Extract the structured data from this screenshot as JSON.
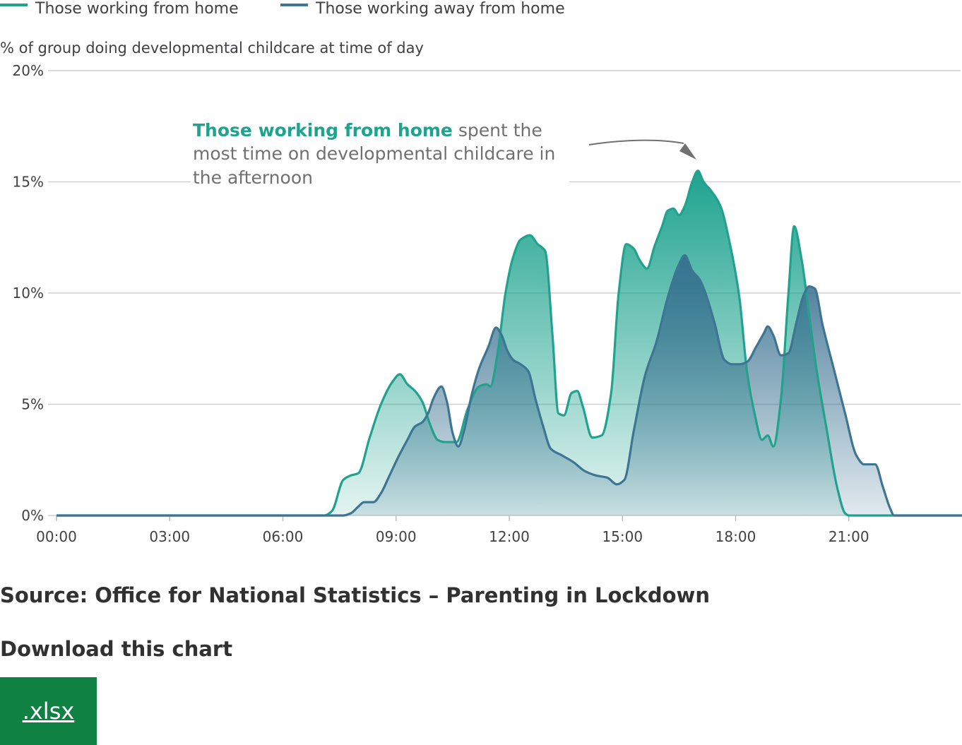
{
  "chart_data": {
    "type": "area",
    "ylabel": "% of group doing developmental childcare at time of day",
    "ylim": [
      0,
      20
    ],
    "xlim": [
      0,
      24
    ],
    "y_ticks": [
      0,
      5,
      10,
      15,
      20
    ],
    "y_tick_labels": [
      "0%",
      "5%",
      "10%",
      "15%",
      "20%"
    ],
    "x_ticks": [
      0,
      3,
      6,
      9,
      12,
      15,
      18,
      21
    ],
    "x_tick_labels": [
      "00:00",
      "03:00",
      "06:00",
      "09:00",
      "12:00",
      "15:00",
      "18:00",
      "21:00"
    ],
    "grid": "horizontal",
    "legend_position": "top-left",
    "series": [
      {
        "name": "Those working from home",
        "color": "#22a28e",
        "points": [
          [
            0,
            0
          ],
          [
            7.1,
            0
          ],
          [
            7.3,
            0.2
          ],
          [
            7.6,
            1.6
          ],
          [
            7.8,
            1.8
          ],
          [
            8.0,
            1.9
          ],
          [
            8.3,
            3.5
          ],
          [
            8.6,
            5.0
          ],
          [
            8.9,
            6.0
          ],
          [
            9.1,
            6.35
          ],
          [
            9.3,
            5.9
          ],
          [
            9.5,
            5.6
          ],
          [
            9.7,
            5.1
          ],
          [
            9.9,
            4.1
          ],
          [
            10.1,
            3.4
          ],
          [
            10.3,
            3.3
          ],
          [
            10.6,
            3.3
          ],
          [
            10.9,
            4.8
          ],
          [
            11.2,
            5.8
          ],
          [
            11.4,
            5.9
          ],
          [
            11.5,
            5.8
          ],
          [
            11.7,
            7.4
          ],
          [
            11.9,
            10.0
          ],
          [
            12.1,
            11.6
          ],
          [
            12.3,
            12.4
          ],
          [
            12.55,
            12.6
          ],
          [
            12.75,
            12.2
          ],
          [
            12.95,
            11.9
          ],
          [
            13.15,
            8.0
          ],
          [
            13.3,
            4.6
          ],
          [
            13.45,
            4.5
          ],
          [
            13.65,
            5.5
          ],
          [
            13.8,
            5.6
          ],
          [
            13.95,
            4.9
          ],
          [
            14.2,
            3.5
          ],
          [
            14.45,
            3.6
          ],
          [
            14.7,
            5.5
          ],
          [
            14.9,
            10.0
          ],
          [
            15.1,
            12.2
          ],
          [
            15.3,
            12.0
          ],
          [
            15.45,
            11.5
          ],
          [
            15.65,
            11.1
          ],
          [
            15.85,
            12.1
          ],
          [
            16.05,
            13.0
          ],
          [
            16.2,
            13.7
          ],
          [
            16.35,
            13.8
          ],
          [
            16.5,
            13.5
          ],
          [
            16.65,
            13.9
          ],
          [
            16.85,
            15.0
          ],
          [
            17.0,
            15.5
          ],
          [
            17.15,
            15.0
          ],
          [
            17.35,
            14.6
          ],
          [
            17.6,
            13.9
          ],
          [
            17.85,
            12.2
          ],
          [
            18.1,
            9.8
          ],
          [
            18.3,
            6.5
          ],
          [
            18.5,
            4.6
          ],
          [
            18.7,
            3.4
          ],
          [
            18.85,
            3.6
          ],
          [
            19.0,
            3.1
          ],
          [
            19.2,
            5.2
          ],
          [
            19.4,
            10.0
          ],
          [
            19.55,
            13.0
          ],
          [
            19.75,
            11.5
          ],
          [
            19.95,
            9.0
          ],
          [
            20.15,
            6.5
          ],
          [
            20.4,
            4.0
          ],
          [
            20.7,
            1.2
          ],
          [
            20.9,
            0.1
          ],
          [
            21.0,
            0
          ],
          [
            24,
            0
          ]
        ]
      },
      {
        "name": "Those working away from home",
        "color": "#3d7592",
        "points": [
          [
            0,
            0
          ],
          [
            7.6,
            0
          ],
          [
            7.8,
            0.1
          ],
          [
            8.0,
            0.4
          ],
          [
            8.15,
            0.6
          ],
          [
            8.4,
            0.6
          ],
          [
            8.6,
            1.0
          ],
          [
            8.8,
            1.7
          ],
          [
            9.05,
            2.6
          ],
          [
            9.3,
            3.4
          ],
          [
            9.5,
            4.0
          ],
          [
            9.7,
            4.2
          ],
          [
            9.85,
            4.6
          ],
          [
            10.0,
            5.3
          ],
          [
            10.2,
            5.8
          ],
          [
            10.35,
            5.1
          ],
          [
            10.5,
            3.7
          ],
          [
            10.65,
            3.1
          ],
          [
            10.8,
            3.8
          ],
          [
            11.0,
            5.4
          ],
          [
            11.2,
            6.6
          ],
          [
            11.45,
            7.6
          ],
          [
            11.65,
            8.45
          ],
          [
            11.8,
            8.1
          ],
          [
            11.95,
            7.4
          ],
          [
            12.1,
            7.0
          ],
          [
            12.3,
            6.8
          ],
          [
            12.5,
            6.5
          ],
          [
            12.7,
            5.2
          ],
          [
            12.9,
            4.0
          ],
          [
            13.1,
            3.0
          ],
          [
            13.4,
            2.7
          ],
          [
            13.7,
            2.4
          ],
          [
            14.0,
            2.0
          ],
          [
            14.3,
            1.8
          ],
          [
            14.6,
            1.7
          ],
          [
            14.85,
            1.4
          ],
          [
            15.05,
            1.6
          ],
          [
            15.3,
            3.8
          ],
          [
            15.6,
            6.3
          ],
          [
            15.9,
            7.8
          ],
          [
            16.2,
            9.8
          ],
          [
            16.5,
            11.3
          ],
          [
            16.65,
            11.7
          ],
          [
            16.85,
            11.0
          ],
          [
            17.05,
            10.6
          ],
          [
            17.2,
            10.0
          ],
          [
            17.45,
            8.6
          ],
          [
            17.7,
            7.0
          ],
          [
            17.9,
            6.8
          ],
          [
            18.1,
            6.8
          ],
          [
            18.3,
            6.9
          ],
          [
            18.55,
            7.6
          ],
          [
            18.75,
            8.2
          ],
          [
            18.85,
            8.5
          ],
          [
            19.0,
            8.1
          ],
          [
            19.2,
            7.2
          ],
          [
            19.4,
            7.3
          ],
          [
            19.6,
            8.6
          ],
          [
            19.8,
            9.9
          ],
          [
            19.95,
            10.3
          ],
          [
            20.1,
            10.2
          ],
          [
            20.3,
            8.6
          ],
          [
            20.6,
            6.6
          ],
          [
            20.9,
            4.6
          ],
          [
            21.2,
            2.7
          ],
          [
            21.4,
            2.3
          ],
          [
            21.7,
            2.3
          ],
          [
            21.9,
            1.3
          ],
          [
            22.1,
            0.3
          ],
          [
            22.2,
            0
          ],
          [
            24,
            0
          ]
        ]
      }
    ],
    "annotation": {
      "highlight": "Those working from home",
      "rest_line1": " spent the",
      "line2": "most time on developmental childcare in",
      "line3": "the afternoon",
      "arrow_target": [
        16.9,
        15.9
      ]
    }
  },
  "source": "Source: Office for National Statistics – Parenting in Lockdown",
  "download": {
    "title": "Download this chart",
    "xlsx_label": ".xlsx"
  }
}
